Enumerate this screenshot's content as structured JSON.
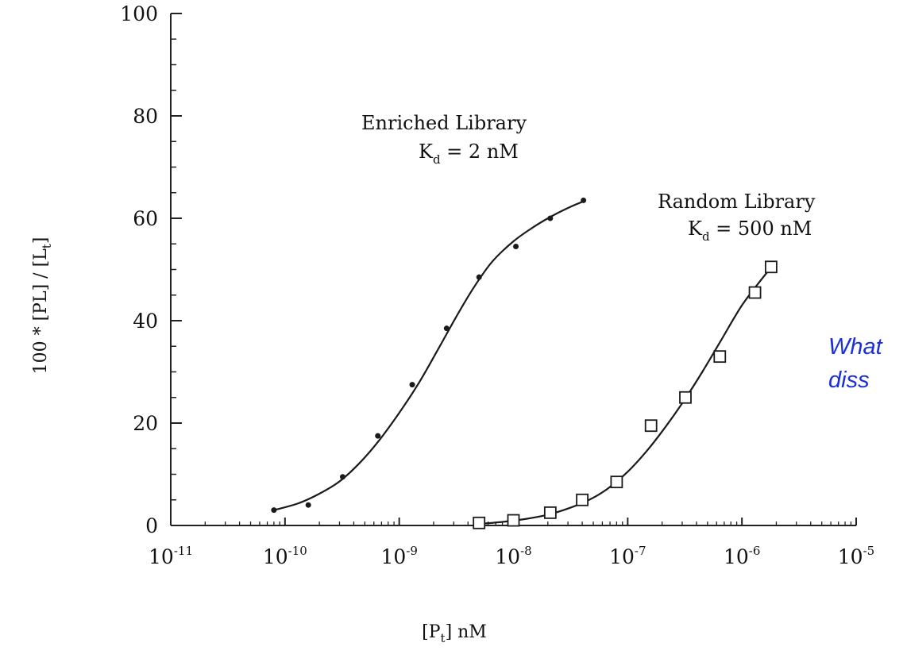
{
  "chart_data": {
    "type": "scatter",
    "title": "",
    "x_scale": "log",
    "xlim": [
      1e-11,
      1e-05
    ],
    "ylim": [
      0,
      100
    ],
    "x_ticks": [
      {
        "base": "10",
        "exp": "-11"
      },
      {
        "base": "10",
        "exp": "-10"
      },
      {
        "base": "10",
        "exp": "-9"
      },
      {
        "base": "10",
        "exp": "-8"
      },
      {
        "base": "10",
        "exp": "-7"
      },
      {
        "base": "10",
        "exp": "-6"
      },
      {
        "base": "10",
        "exp": "-5"
      }
    ],
    "y_ticks": [
      "0",
      "20",
      "40",
      "60",
      "80",
      "100"
    ],
    "xlabel": {
      "main": "[P",
      "sub": "t",
      "tail": "] nM"
    },
    "ylabel": {
      "main": "100 * [PL] / [L",
      "sub": "t",
      "tail": "]"
    },
    "grid": false,
    "series": [
      {
        "name": "Enriched Library",
        "marker": "dot",
        "points": [
          {
            "x": 8e-11,
            "y": 3
          },
          {
            "x": 1.6e-10,
            "y": 4
          },
          {
            "x": 3.2e-10,
            "y": 9.5
          },
          {
            "x": 6.5e-10,
            "y": 17.5
          },
          {
            "x": 1.3e-09,
            "y": 27.5
          },
          {
            "x": 2.6e-09,
            "y": 38.5
          },
          {
            "x": 5e-09,
            "y": 48.5
          },
          {
            "x": 1.05e-08,
            "y": 54.5
          },
          {
            "x": 2.1e-08,
            "y": 60
          },
          {
            "x": 4.1e-08,
            "y": 63.5
          }
        ],
        "fit": [
          {
            "x": 8e-11,
            "y": 3
          },
          {
            "x": 1.3e-10,
            "y": 4.3
          },
          {
            "x": 2e-10,
            "y": 6.2
          },
          {
            "x": 3e-10,
            "y": 8.6
          },
          {
            "x": 4.5e-10,
            "y": 12.2
          },
          {
            "x": 6.5e-10,
            "y": 16.3
          },
          {
            "x": 1e-09,
            "y": 22
          },
          {
            "x": 1.5e-09,
            "y": 28
          },
          {
            "x": 2.2e-09,
            "y": 34.5
          },
          {
            "x": 3.2e-09,
            "y": 41
          },
          {
            "x": 4.5e-09,
            "y": 46.5
          },
          {
            "x": 6.5e-09,
            "y": 51.5
          },
          {
            "x": 1e-08,
            "y": 55.5
          },
          {
            "x": 1.5e-08,
            "y": 58.3
          },
          {
            "x": 2.2e-08,
            "y": 60.5
          },
          {
            "x": 3.2e-08,
            "y": 62.3
          },
          {
            "x": 4.1e-08,
            "y": 63.3
          }
        ],
        "annotation": {
          "line1": "Enriched   Library",
          "kd_label": "K",
          "kd_sub": "d",
          "kd_value": " = 2 nM"
        }
      },
      {
        "name": "Random Library",
        "marker": "square",
        "points": [
          {
            "x": 5e-09,
            "y": 0.5
          },
          {
            "x": 1e-08,
            "y": 1
          },
          {
            "x": 2.1e-08,
            "y": 2.5
          },
          {
            "x": 4e-08,
            "y": 5
          },
          {
            "x": 8e-08,
            "y": 8.5
          },
          {
            "x": 1.6e-07,
            "y": 19.5
          },
          {
            "x": 3.2e-07,
            "y": 25
          },
          {
            "x": 6.4e-07,
            "y": 33
          },
          {
            "x": 1.3e-06,
            "y": 45.5
          },
          {
            "x": 1.8e-06,
            "y": 50.5
          }
        ],
        "fit": [
          {
            "x": 5e-09,
            "y": 0.3
          },
          {
            "x": 8e-09,
            "y": 0.7
          },
          {
            "x": 1.3e-08,
            "y": 1.3
          },
          {
            "x": 2e-08,
            "y": 2.1
          },
          {
            "x": 3e-08,
            "y": 3.3
          },
          {
            "x": 4.5e-08,
            "y": 4.9
          },
          {
            "x": 6.5e-08,
            "y": 7
          },
          {
            "x": 1e-07,
            "y": 10.5
          },
          {
            "x": 1.5e-07,
            "y": 14.8
          },
          {
            "x": 2.2e-07,
            "y": 19.6
          },
          {
            "x": 3.2e-07,
            "y": 24.8
          },
          {
            "x": 4.5e-07,
            "y": 30
          },
          {
            "x": 6.5e-07,
            "y": 36
          },
          {
            "x": 1e-06,
            "y": 43
          },
          {
            "x": 1.5e-06,
            "y": 48.2
          },
          {
            "x": 1.9e-06,
            "y": 51
          }
        ],
        "annotation": {
          "line1": "Random   Library",
          "kd_label": "K",
          "kd_sub": "d",
          "kd_value": " = 500 nM"
        }
      }
    ]
  },
  "question": {
    "line1": "What",
    "line2": "diss"
  }
}
